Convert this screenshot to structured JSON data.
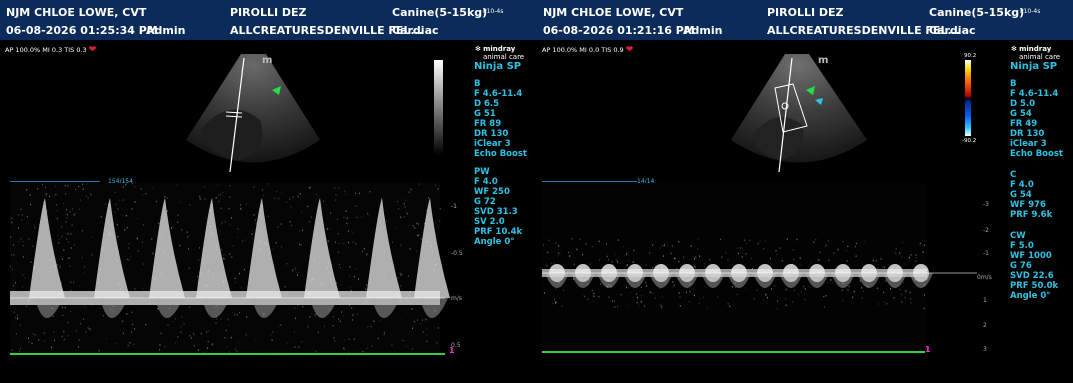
{
  "panels": [
    {
      "header": {
        "operator": "NJM CHLOE LOWE, CVT",
        "patient": "PIROLLI DEZ",
        "species": "Canine(5-15kg)",
        "probe": "P10-4s",
        "date_time": "06-08-2026  01:25:34 PM",
        "user": "Admin",
        "clinic": "ALLCREATURESDENVILLE FEL...",
        "exam": "Cardiac"
      },
      "status": {
        "text": "AP 100.0%  MI 0.3  TIS 0.3",
        "heart_icon": "heart-icon"
      },
      "brand": {
        "line1": "mindray",
        "line2": "animal care",
        "model": "Ninja SP"
      },
      "b_params": [
        "B",
        "F 4.6-11.4",
        "D 6.5",
        "G 51",
        "FR 89",
        "DR 130",
        "iClear 3",
        "Echo Boost"
      ],
      "doppler_params": [
        "PW",
        "F 4.0",
        "WF 250",
        "G 72",
        "SVD 31.3",
        "SV 2.0",
        "PRF 10.4k",
        "Angle 0°"
      ],
      "frame_counter": "154/154",
      "scale_labels": [
        "-1",
        "-0.5",
        "m/s",
        "0.5"
      ],
      "marker": "1"
    },
    {
      "header": {
        "operator": "NJM CHLOE LOWE, CVT",
        "patient": "PIROLLI DEZ",
        "species": "Canine(5-15kg)",
        "probe": "P10-4s",
        "date_time": "06-08-2026  01:21:16 PM",
        "user": "Admin",
        "clinic": "ALLCREATURESDENVILLE FEL...",
        "exam": "Cardiac"
      },
      "status": {
        "text": "AP 100.0%  MI 0.0  TIS 0.9",
        "heart_icon": "heart-icon"
      },
      "brand": {
        "line1": "mindray",
        "line2": "animal care",
        "model": "Ninja SP"
      },
      "color_scale": {
        "top": "90.2",
        "bottom": "-90.2"
      },
      "b_params": [
        "B",
        "F 4.6-11.4",
        "D 5.0",
        "G 54",
        "FR 49",
        "DR 130",
        "iClear 3",
        "Echo Boost"
      ],
      "c_params": [
        "C",
        "F 4.0",
        "G 54",
        "WF 976",
        "PRF 9.6k"
      ],
      "doppler_params": [
        "CW",
        "F 5.0",
        "WF 1000",
        "G 76",
        "SVD 22.6",
        "PRF 50.0k",
        "Angle 0°"
      ],
      "frame_counter": "14/14",
      "scale_labels": [
        "-3",
        "-2",
        "-1",
        "0m/s",
        "1",
        "2",
        "3"
      ],
      "marker": "1"
    }
  ]
}
